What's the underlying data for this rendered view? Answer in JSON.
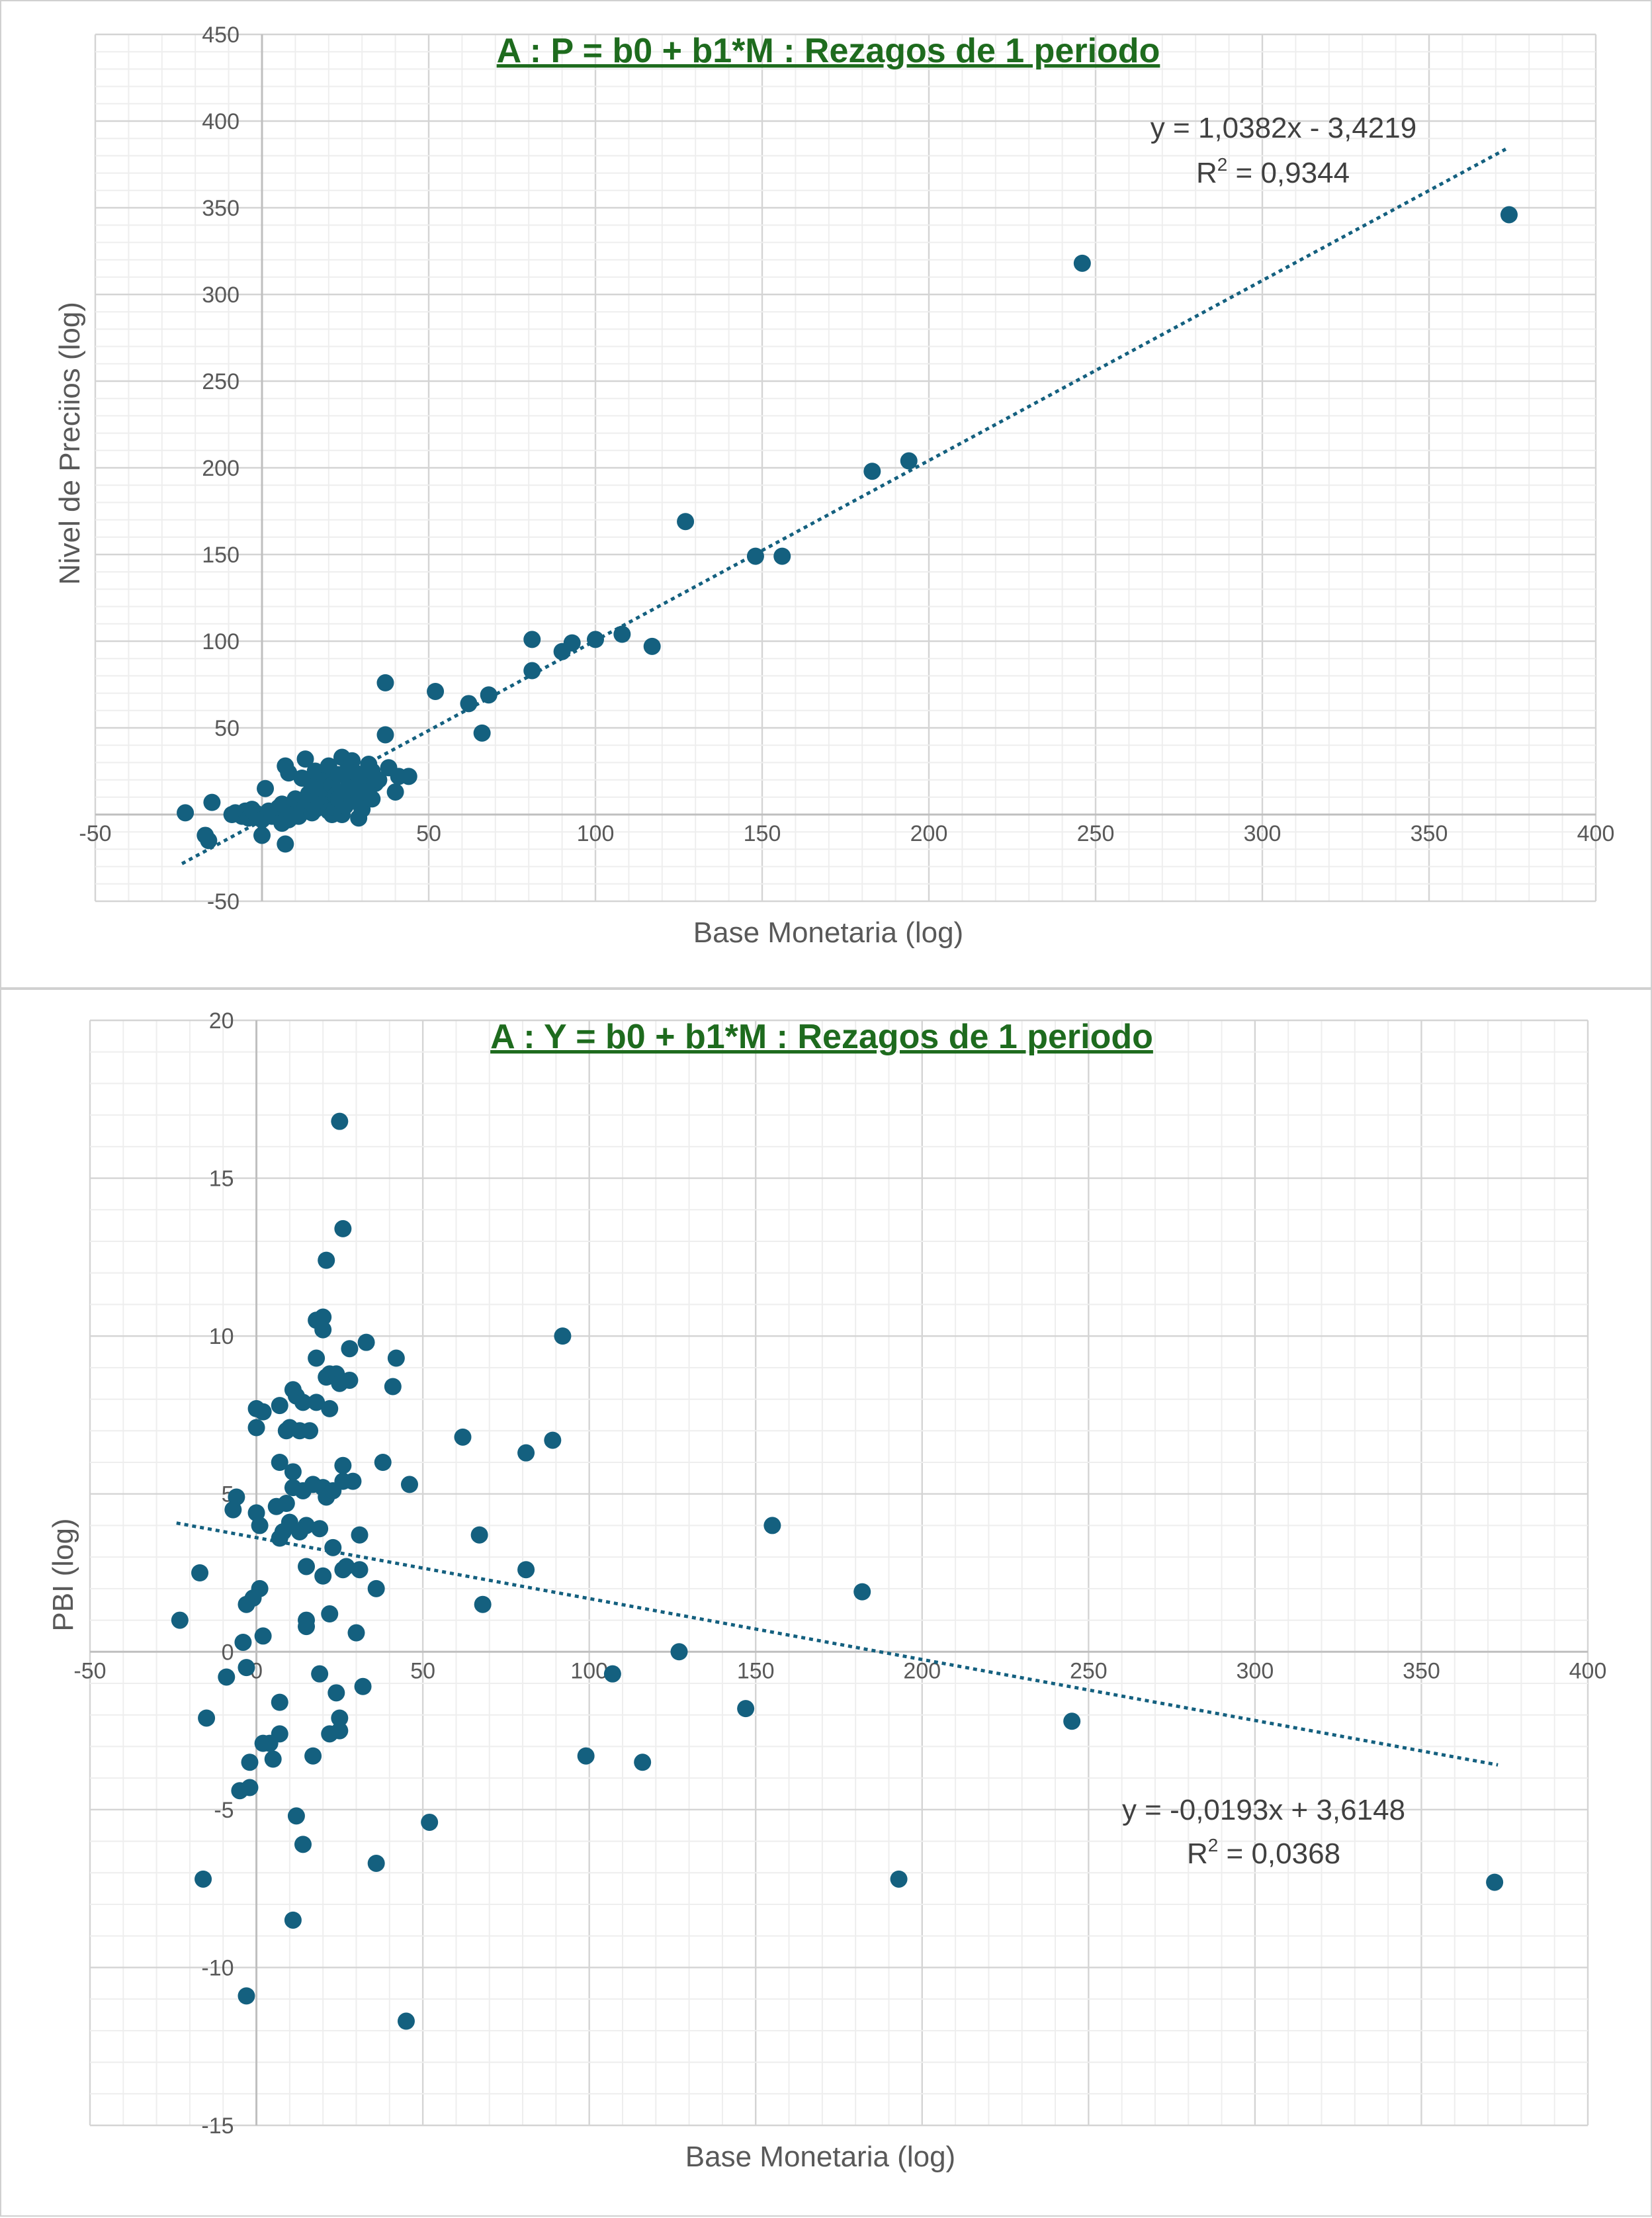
{
  "chart_data": [
    {
      "type": "scatter",
      "title": "A : P = b0 + b1*M : Rezagos de 1 periodo",
      "xlabel": "Base Monetaria (log)",
      "ylabel": "Nivel de Preciios (log)",
      "xlim": [
        -50,
        400
      ],
      "ylim": [
        -50,
        450
      ],
      "xticks": [
        "-50",
        "0",
        "50",
        "100",
        "150",
        "200",
        "250",
        "300",
        "350",
        "400"
      ],
      "yticks": [
        "-50",
        "50",
        "100",
        "150",
        "200",
        "250",
        "300",
        "350",
        "400",
        "450"
      ],
      "grid": true,
      "legend": "none",
      "marker_color": "#14607f",
      "title_color": "#1e6b1e",
      "trendline": {
        "slope": 1.0382,
        "intercept": -3.4219,
        "x_range": [
          -24,
          373
        ],
        "equation": "y = 1,0382x - 3,4219",
        "r2_label": "R",
        "r2_sup": "2",
        "r2_value": " = 0,9344"
      },
      "points": [
        [
          -23,
          1
        ],
        [
          -17,
          -12
        ],
        [
          -16,
          -15
        ],
        [
          -15,
          7
        ],
        [
          -9,
          0
        ],
        [
          -8,
          1
        ],
        [
          -6,
          -1
        ],
        [
          -5,
          2
        ],
        [
          -4,
          -2
        ],
        [
          -3,
          3
        ],
        [
          -2,
          1
        ],
        [
          -1,
          0
        ],
        [
          0,
          -3
        ],
        [
          0,
          -12
        ],
        [
          1,
          15
        ],
        [
          2,
          2
        ],
        [
          3,
          -1
        ],
        [
          4,
          0
        ],
        [
          5,
          4
        ],
        [
          6,
          6
        ],
        [
          6,
          -5
        ],
        [
          7,
          -17
        ],
        [
          7,
          28
        ],
        [
          8,
          24
        ],
        [
          8,
          -3
        ],
        [
          9,
          0
        ],
        [
          10,
          5
        ],
        [
          10,
          9
        ],
        [
          11,
          -1
        ],
        [
          12,
          3
        ],
        [
          12,
          21
        ],
        [
          13,
          5
        ],
        [
          13,
          32
        ],
        [
          14,
          8
        ],
        [
          14,
          12
        ],
        [
          15,
          17
        ],
        [
          15,
          1
        ],
        [
          16,
          3
        ],
        [
          16,
          25
        ],
        [
          17,
          10
        ],
        [
          18,
          6
        ],
        [
          18,
          15
        ],
        [
          19,
          20
        ],
        [
          20,
          2
        ],
        [
          20,
          28
        ],
        [
          21,
          0
        ],
        [
          21,
          17
        ],
        [
          22,
          4
        ],
        [
          22,
          11
        ],
        [
          23,
          23
        ],
        [
          23,
          9
        ],
        [
          24,
          33
        ],
        [
          24,
          0
        ],
        [
          25,
          14
        ],
        [
          25,
          5
        ],
        [
          26,
          20
        ],
        [
          26,
          28
        ],
        [
          27,
          31
        ],
        [
          27,
          8
        ],
        [
          28,
          16
        ],
        [
          28,
          24
        ],
        [
          29,
          11
        ],
        [
          29,
          -2
        ],
        [
          30,
          19
        ],
        [
          30,
          3
        ],
        [
          31,
          22
        ],
        [
          31,
          13
        ],
        [
          32,
          29
        ],
        [
          33,
          25
        ],
        [
          33,
          9
        ],
        [
          34,
          18
        ],
        [
          35,
          20
        ],
        [
          37,
          46
        ],
        [
          37,
          76
        ],
        [
          38,
          27
        ],
        [
          40,
          13
        ],
        [
          41,
          22
        ],
        [
          44,
          22
        ],
        [
          52,
          71
        ],
        [
          62,
          64
        ],
        [
          66,
          47
        ],
        [
          68,
          69
        ],
        [
          81,
          83
        ],
        [
          81,
          101
        ],
        [
          90,
          94
        ],
        [
          93,
          99
        ],
        [
          100,
          101
        ],
        [
          108,
          104
        ],
        [
          117,
          97
        ],
        [
          127,
          169
        ],
        [
          148,
          149
        ],
        [
          156,
          149
        ],
        [
          183,
          198
        ],
        [
          194,
          204
        ],
        [
          246,
          318
        ],
        [
          374,
          346
        ]
      ]
    },
    {
      "type": "scatter",
      "title": "A : Y = b0 + b1*M :  Rezagos de 1 periodo",
      "xlabel": "Base Monetaria (log)",
      "ylabel": "PBI  (log)",
      "xlim": [
        -50,
        400
      ],
      "ylim": [
        -15,
        20
      ],
      "xticks": [
        "-50",
        "0",
        "50",
        "100",
        "150",
        "200",
        "250",
        "300",
        "350",
        "400"
      ],
      "yticks": [
        "-15",
        "-10",
        "-5",
        "0",
        "5",
        "10",
        "15",
        "20"
      ],
      "grid": true,
      "legend": "none",
      "marker_color": "#14607f",
      "title_color": "#1e6b1e",
      "trendline": {
        "slope": -0.0193,
        "intercept": 3.6148,
        "x_range": [
          -24,
          373
        ],
        "equation": "y = -0,0193x + 3,6148",
        "r2_label": "R",
        "r2_sup": "2",
        "r2_value": " = 0,0368"
      },
      "points": [
        [
          -23,
          1.0
        ],
        [
          -17,
          2.5
        ],
        [
          -16,
          -7.2
        ],
        [
          -15,
          -2.1
        ],
        [
          -9,
          -0.8
        ],
        [
          -7,
          4.5
        ],
        [
          -6,
          4.9
        ],
        [
          -5,
          -4.4
        ],
        [
          -4,
          0.3
        ],
        [
          -3,
          -0.5
        ],
        [
          -3,
          1.5
        ],
        [
          -3,
          -10.9
        ],
        [
          -2,
          -3.5
        ],
        [
          -2,
          -4.3
        ],
        [
          -1,
          1.7
        ],
        [
          0,
          7.7
        ],
        [
          0,
          7.1
        ],
        [
          0,
          4.4
        ],
        [
          1,
          2.0
        ],
        [
          1,
          4.0
        ],
        [
          2,
          7.6
        ],
        [
          2,
          0.5
        ],
        [
          2,
          -2.9
        ],
        [
          4,
          -2.9
        ],
        [
          5,
          -3.4
        ],
        [
          6,
          4.6
        ],
        [
          7,
          7.8
        ],
        [
          7,
          6.0
        ],
        [
          7,
          3.6
        ],
        [
          7,
          -1.6
        ],
        [
          7,
          -2.6
        ],
        [
          8,
          3.8
        ],
        [
          9,
          7.0
        ],
        [
          9,
          4.7
        ],
        [
          10,
          7.1
        ],
        [
          10,
          4.1
        ],
        [
          11,
          -8.5
        ],
        [
          11,
          8.3
        ],
        [
          11,
          5.2
        ],
        [
          11,
          5.7
        ],
        [
          12,
          8.1
        ],
        [
          12,
          -5.2
        ],
        [
          13,
          7.0
        ],
        [
          13,
          3.8
        ],
        [
          14,
          7.9
        ],
        [
          14,
          -6.1
        ],
        [
          14,
          5.1
        ],
        [
          15,
          4.0
        ],
        [
          15,
          2.7
        ],
        [
          15,
          1.0
        ],
        [
          15,
          0.8
        ],
        [
          16,
          7.0
        ],
        [
          17,
          5.3
        ],
        [
          17,
          -3.3
        ],
        [
          18,
          10.5
        ],
        [
          18,
          9.3
        ],
        [
          18,
          7.9
        ],
        [
          19,
          3.9
        ],
        [
          19,
          -0.7
        ],
        [
          20,
          10.6
        ],
        [
          20,
          10.2
        ],
        [
          20,
          5.2
        ],
        [
          20,
          2.4
        ],
        [
          21,
          12.4
        ],
        [
          21,
          8.7
        ],
        [
          21,
          4.9
        ],
        [
          22,
          8.8
        ],
        [
          22,
          7.7
        ],
        [
          22,
          1.2
        ],
        [
          22,
          -2.6
        ],
        [
          23,
          5.1
        ],
        [
          23,
          3.3
        ],
        [
          24,
          8.8
        ],
        [
          24,
          -1.3
        ],
        [
          25,
          16.8
        ],
        [
          25,
          8.5
        ],
        [
          25,
          -2.1
        ],
        [
          25,
          -2.5
        ],
        [
          26,
          13.4
        ],
        [
          26,
          5.9
        ],
        [
          26,
          5.4
        ],
        [
          26,
          2.6
        ],
        [
          27,
          2.7
        ],
        [
          28,
          9.6
        ],
        [
          28,
          8.6
        ],
        [
          29,
          5.4
        ],
        [
          30,
          0.6
        ],
        [
          31,
          3.7
        ],
        [
          31,
          2.6
        ],
        [
          32,
          -1.1
        ],
        [
          33,
          9.8
        ],
        [
          36,
          2.0
        ],
        [
          36,
          -6.7
        ],
        [
          38,
          6.0
        ],
        [
          41,
          8.4
        ],
        [
          42,
          9.3
        ],
        [
          45,
          -11.7
        ],
        [
          46,
          5.3
        ],
        [
          52,
          -5.4
        ],
        [
          62,
          6.8
        ],
        [
          67,
          3.7
        ],
        [
          68,
          1.5
        ],
        [
          81,
          2.6
        ],
        [
          81,
          6.3
        ],
        [
          89,
          6.7
        ],
        [
          92,
          10.0
        ],
        [
          99,
          -3.3
        ],
        [
          107,
          -0.7
        ],
        [
          116,
          -3.5
        ],
        [
          127,
          0
        ],
        [
          147,
          -1.8
        ],
        [
          155,
          4.0
        ],
        [
          182,
          1.9
        ],
        [
          193,
          -7.2
        ],
        [
          245,
          -2.2
        ],
        [
          372,
          -7.3
        ]
      ]
    }
  ]
}
